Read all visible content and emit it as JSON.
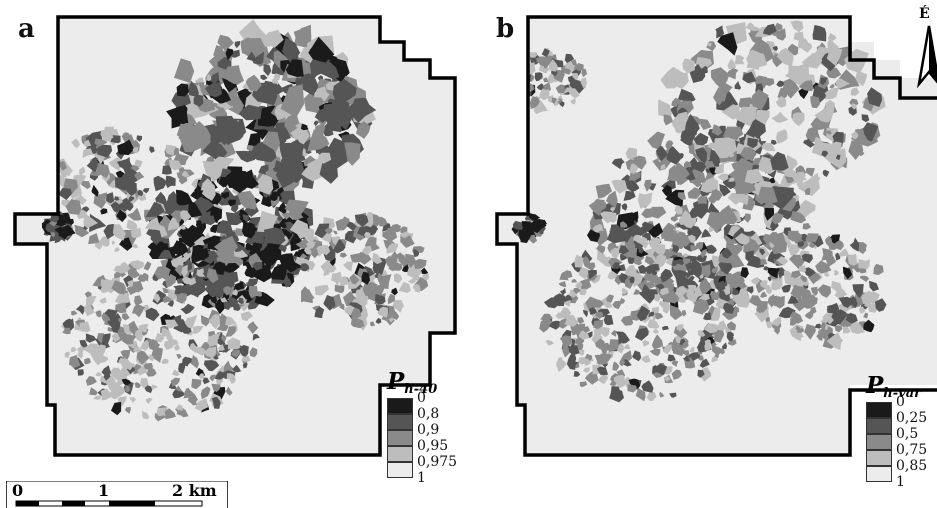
{
  "panels": {
    "a": {
      "label": "a",
      "legend": {
        "title_main": "P",
        "title_sub": "h-40",
        "values": [
          "0",
          "0,8",
          "0,9",
          "0,95",
          "0,975",
          "1"
        ]
      }
    },
    "b": {
      "label": "b",
      "legend": {
        "title_main": "P",
        "title_sub": "h-var",
        "values": [
          "0",
          "0,25",
          "0,5",
          "0,75",
          "0,85",
          "1"
        ]
      }
    }
  },
  "legend_colors": [
    "#1a1a1a",
    "#555555",
    "#8a8a8a",
    "#bdbdbd",
    "#ececec"
  ],
  "scalebar": {
    "labels": [
      "0",
      "1",
      "2 km"
    ]
  },
  "north_arrow": {
    "label": "É",
    "icon": "north-arrow-icon"
  }
}
